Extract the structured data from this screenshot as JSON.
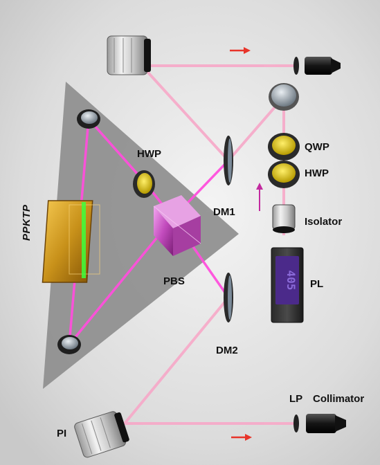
{
  "labels": {
    "hwp_cavity": "HWP",
    "ppktp": "PPKTP",
    "pbs": "PBS",
    "dm1": "DM1",
    "dm2": "DM2",
    "qwp": "QWP",
    "hwp_pump": "HWP",
    "isolator": "Isolator",
    "pl": "PL",
    "pi": "PI",
    "lp": "LP",
    "collimator": "Collimator",
    "laser_display": "405"
  },
  "colors": {
    "background": "#e6e6e6",
    "cavity_plate": "#8e8e8e",
    "beam_pink": "#f0a4c0",
    "beam_magenta": "#ff3fd6",
    "beam_green": "#3cff3c",
    "arrow_red": "#e8342a",
    "arrow_purple": "#c22a9f",
    "crystal_gold": "#c8911a",
    "waveplate_yellow": "#d8c400",
    "pbs_magenta": "#d66bd0",
    "laser_screen": "#4b2a8a"
  }
}
